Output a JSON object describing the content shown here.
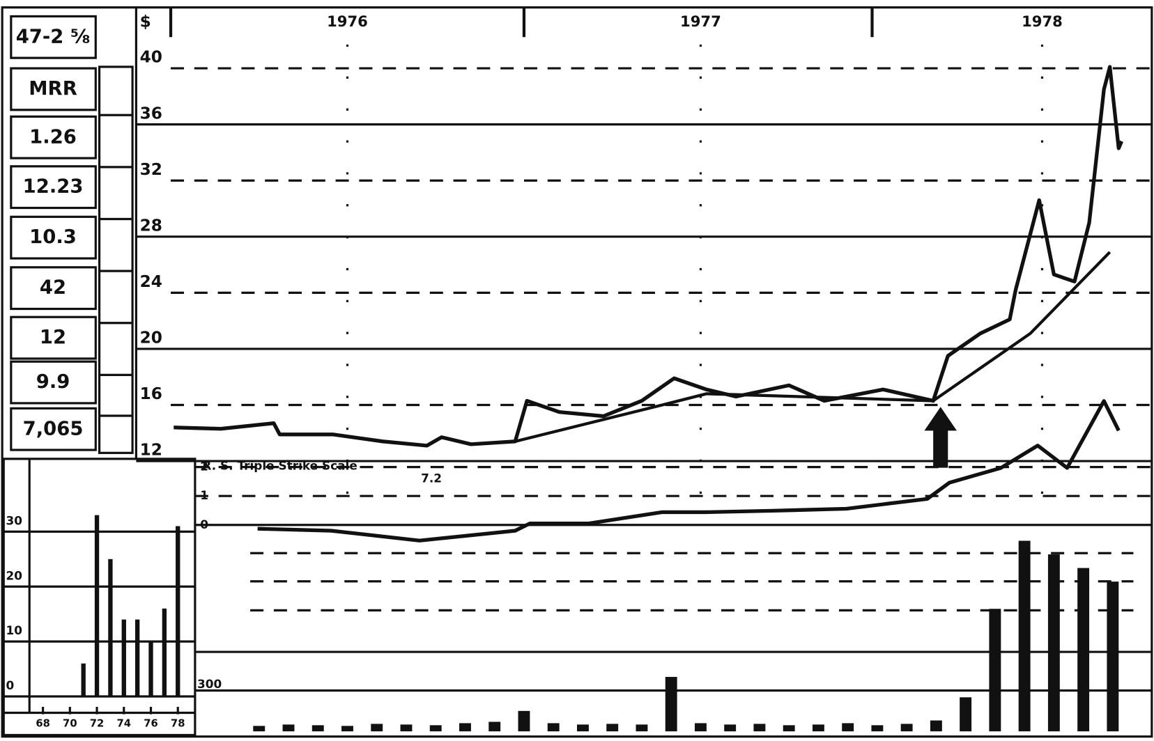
{
  "info_boxes": [
    "47-2 ⅝",
    "MRR",
    "1.26",
    "12.23",
    "10.3",
    "42",
    "12",
    "9.9",
    "7,065"
  ],
  "chart_data": [
    {
      "type": "line",
      "price_unit": "$",
      "xlim": [
        0,
        33.2
      ],
      "xticks": [
        {
          "value": 6,
          "label": "1976"
        },
        {
          "value": 18,
          "label": "1977"
        },
        {
          "value": 29.6,
          "label": "1978"
        }
      ],
      "ylim": [
        12,
        40
      ],
      "yticks": [
        12,
        16,
        20,
        24,
        28,
        32,
        36,
        40
      ],
      "grid": true,
      "series": [
        {
          "color": "#111111",
          "x": [
            0.1,
            1.7,
            3.5,
            3.7,
            5.5,
            7.2,
            8.7,
            9.2,
            10.2,
            11.7,
            12.1,
            13.2,
            14.7,
            16,
            17.1,
            18.2,
            19.2,
            21,
            22.2,
            24.2,
            25.9,
            26.4,
            27.5,
            28.5,
            28.7,
            29.5,
            30,
            30.7,
            31.2,
            31.7,
            31.9,
            32.2,
            32.3
          ],
          "values": [
            14.4,
            14.3,
            14.7,
            13.9,
            13.9,
            13.4,
            13.1,
            13.7,
            13.2,
            13.4,
            16.3,
            15.5,
            15.2,
            16.3,
            17.9,
            17.1,
            16.6,
            17.4,
            16.3,
            17.1,
            16.3,
            19.5,
            21.1,
            22.1,
            24.2,
            30.6,
            25.3,
            24.8,
            29.0,
            38.5,
            40.1,
            34.3,
            34.8
          ]
        },
        {
          "color": "#111111",
          "x": [
            11.7,
            16.7,
            18.2,
            25.9,
            29.2,
            31.9
          ],
          "values": [
            13.4,
            16.0,
            16.8,
            16.3,
            21.1,
            26.9
          ]
        }
      ]
    },
    {
      "type": "line",
      "label": "R. S. Triple Strike Scale",
      "annotation": "7.2",
      "xlim": [
        0,
        33.2
      ],
      "ylim": [
        -0.6,
        4.5
      ],
      "yticks": [
        0,
        1,
        2
      ],
      "grid": true,
      "series": [
        {
          "color": "#111111",
          "x": [
            2.95,
            5.45,
            8.45,
            11.7,
            12.2,
            14.2,
            16.7,
            18.2,
            20.45,
            22.95,
            25.7,
            26.45,
            28.2,
            29.45,
            30.45,
            31.7,
            32.2
          ],
          "values": [
            -0.13,
            -0.2,
            -0.54,
            -0.2,
            0.05,
            0.05,
            0.44,
            0.44,
            0.49,
            0.56,
            0.9,
            1.46,
            1.97,
            2.74,
            1.97,
            4.28,
            3.26
          ]
        }
      ]
    },
    {
      "type": "bar",
      "xlim": [
        0,
        33.2
      ],
      "ylim": [
        0,
        1500
      ],
      "yticks": [
        300
      ],
      "grid": true,
      "color": "#111111",
      "x": [
        3,
        4,
        5,
        6,
        7,
        8,
        9,
        10,
        11,
        12,
        13,
        14,
        15,
        16,
        17,
        18,
        19,
        20,
        21,
        22,
        23,
        24,
        25,
        26,
        27,
        28,
        29,
        30,
        31,
        32
      ],
      "values": [
        40,
        50,
        45,
        40,
        55,
        50,
        45,
        60,
        70,
        150,
        60,
        50,
        55,
        50,
        400,
        60,
        50,
        55,
        45,
        50,
        60,
        45,
        55,
        80,
        250,
        900,
        1400,
        1300,
        1200,
        1100
      ]
    },
    {
      "type": "bar",
      "xlim": [
        67,
        79
      ],
      "xticks": [
        68,
        70,
        72,
        74,
        76,
        78
      ],
      "ylim": [
        0,
        30
      ],
      "yticks": [
        0,
        10,
        20,
        30
      ],
      "grid": true,
      "color": "#111111",
      "x": [
        71,
        72,
        73,
        74,
        75,
        76,
        77,
        78
      ],
      "values": [
        6,
        33,
        25,
        14,
        14,
        10,
        16,
        31
      ]
    }
  ]
}
